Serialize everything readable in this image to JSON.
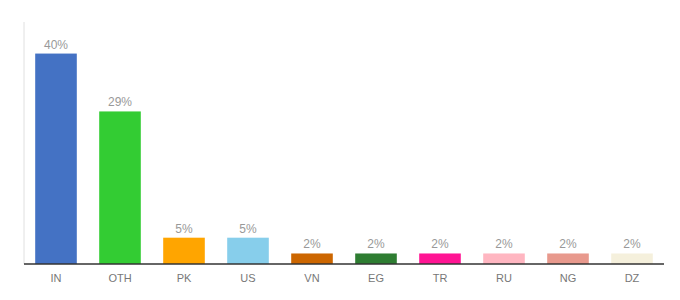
{
  "chart_data": {
    "type": "bar",
    "categories": [
      "IN",
      "OTH",
      "PK",
      "US",
      "VN",
      "EG",
      "TR",
      "RU",
      "NG",
      "DZ"
    ],
    "values": [
      40,
      29,
      5,
      5,
      2,
      2,
      2,
      2,
      2,
      2
    ],
    "value_labels": [
      "40%",
      "29%",
      "5%",
      "5%",
      "2%",
      "2%",
      "2%",
      "2%",
      "2%",
      "2%"
    ],
    "colors": [
      "#4472C4",
      "#33CC33",
      "#FFA500",
      "#87CEEB",
      "#CC6600",
      "#2E7D32",
      "#FF1493",
      "#FFB6C1",
      "#E8998D",
      "#F5F0DC"
    ],
    "ylim": [
      0,
      46
    ],
    "data_labels": true,
    "tick_labels": "x",
    "grid": false
  }
}
